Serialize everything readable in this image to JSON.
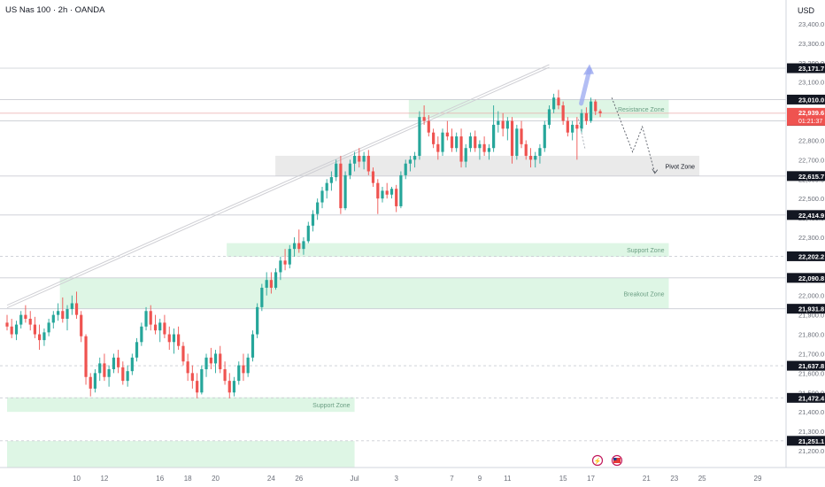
{
  "header": {
    "title": "US Nas 100 · 2h · OANDA",
    "currency": "USD"
  },
  "colors": {
    "up": "#26a69a",
    "down": "#ef5350",
    "zone_green": "#d8f5e1",
    "zone_gray": "#e6e6e6",
    "projection": "#9aa8f0"
  },
  "chart_data": {
    "type": "candlestick",
    "title": "US Nas 100 · 2h · OANDA",
    "ylim": [
      21100,
      23500
    ],
    "y_ticks": [
      21200,
      21300,
      21400,
      21500,
      21600,
      21700,
      21800,
      21900,
      22000,
      22100,
      22200,
      22300,
      22400,
      22500,
      22600,
      22700,
      22800,
      22900,
      23000,
      23100,
      23200,
      23300,
      23400
    ],
    "y_tick_labels": [
      "21,200.0",
      "21,300.0",
      "21,400.0",
      "21,500.0",
      "21,600.0",
      "21,700.0",
      "21,800.0",
      "21,900.0",
      "22,000.0",
      "22,100.0",
      "22,200.0",
      "22,300.0",
      "22,400.0",
      "22,500.0",
      "22,600.0",
      "22,700.0",
      "22,800.0",
      "22,900.0",
      "23,000.0",
      "23,100.0",
      "23,200.0",
      "23,300.0",
      "23,400.0"
    ],
    "x_ticks": [
      {
        "label": "10",
        "day": 10
      },
      {
        "label": "12",
        "day": 12
      },
      {
        "label": "16",
        "day": 16
      },
      {
        "label": "18",
        "day": 18
      },
      {
        "label": "20",
        "day": 20
      },
      {
        "label": "24",
        "day": 24
      },
      {
        "label": "26",
        "day": 26
      },
      {
        "label": "Jul",
        "day": 30
      },
      {
        "label": "3",
        "day": 33
      },
      {
        "label": "7",
        "day": 37
      },
      {
        "label": "9",
        "day": 39
      },
      {
        "label": "11",
        "day": 41
      },
      {
        "label": "15",
        "day": 45
      },
      {
        "label": "17",
        "day": 47
      },
      {
        "label": "21",
        "day": 51
      },
      {
        "label": "23",
        "day": 53
      },
      {
        "label": "25",
        "day": 55
      },
      {
        "label": "29",
        "day": 59
      }
    ],
    "price_levels": [
      {
        "label": "23,171.7",
        "value": 23171.7,
        "style": "solid"
      },
      {
        "label": "23,010.0",
        "value": 23010,
        "style": "solid"
      },
      {
        "label": "22,900.0",
        "value": 22900,
        "style": "solid"
      },
      {
        "label": "22,615.7",
        "value": 22615.7,
        "style": "solid"
      },
      {
        "label": "22,414.9",
        "value": 22414.9,
        "style": "solid"
      },
      {
        "label": "22,202.2",
        "value": 22202.2,
        "style": "dashed"
      },
      {
        "label": "22,090.8",
        "value": 22090.8,
        "style": "solid"
      },
      {
        "label": "21,931.8",
        "value": 21931.8,
        "style": "solid"
      },
      {
        "label": "21,637.8",
        "value": 21637.8,
        "style": "dashed"
      },
      {
        "label": "21,472.4",
        "value": 21472.4,
        "style": "dashed"
      },
      {
        "label": "21,251.1",
        "value": 21251.1,
        "style": "dashed"
      }
    ],
    "current_price": {
      "label": "22,939.6",
      "countdown": "01:21:37",
      "value": 22939.6
    },
    "zones": [
      {
        "name": "Resistance Zone",
        "x0": 33.9,
        "x1": 52.6,
        "y0": 22915,
        "y1": 23010,
        "color": "green"
      },
      {
        "name": "Pivot Zone",
        "x0": 24.3,
        "x1": 54.8,
        "y0": 22615,
        "y1": 22720,
        "color": "gray"
      },
      {
        "name": "Support Zone",
        "x0": 20.8,
        "x1": 52.6,
        "y0": 22200,
        "y1": 22270,
        "color": "green"
      },
      {
        "name": "Breakout Zone",
        "x0": 8.8,
        "x1": 52.6,
        "y0": 21932,
        "y1": 22090,
        "color": "green"
      },
      {
        "name": "Support Zone",
        "x0": 5.0,
        "x1": 30.0,
        "y0": 21400,
        "y1": 21475,
        "color": "green"
      },
      {
        "name": "",
        "x0": 5.0,
        "x1": 30.0,
        "y0": 21100,
        "y1": 21250,
        "color": "green"
      }
    ],
    "trendline": [
      {
        "x": 5.0,
        "y": 21950
      },
      {
        "x": 44.0,
        "y": 23190
      }
    ],
    "scenario_up": [
      {
        "x": 46.3,
        "y": 22990
      },
      {
        "x": 46.9,
        "y": 23165
      }
    ],
    "scenario_down_short": [
      {
        "x": 46.1,
        "y": 22910
      },
      {
        "x": 46.6,
        "y": 22750
      }
    ],
    "scenario_down_long": [
      {
        "x": 48.5,
        "y": 23020
      },
      {
        "x": 50.0,
        "y": 22740
      },
      {
        "x": 50.7,
        "y": 22870
      },
      {
        "x": 51.6,
        "y": 22630
      }
    ],
    "candles": [
      {
        "x": 5.0,
        "o": 21860,
        "h": 21900,
        "l": 21820,
        "c": 21840
      },
      {
        "x": 5.33,
        "o": 21840,
        "h": 21880,
        "l": 21780,
        "c": 21800
      },
      {
        "x": 5.67,
        "o": 21800,
        "h": 21870,
        "l": 21770,
        "c": 21850
      },
      {
        "x": 6.0,
        "o": 21850,
        "h": 21920,
        "l": 21830,
        "c": 21900
      },
      {
        "x": 6.33,
        "o": 21900,
        "h": 21950,
        "l": 21860,
        "c": 21880
      },
      {
        "x": 6.67,
        "o": 21880,
        "h": 21920,
        "l": 21820,
        "c": 21850
      },
      {
        "x": 7.0,
        "o": 21850,
        "h": 21890,
        "l": 21780,
        "c": 21800
      },
      {
        "x": 7.33,
        "o": 21800,
        "h": 21850,
        "l": 21720,
        "c": 21770
      },
      {
        "x": 7.67,
        "o": 21770,
        "h": 21830,
        "l": 21740,
        "c": 21810
      },
      {
        "x": 8.0,
        "o": 21810,
        "h": 21880,
        "l": 21790,
        "c": 21860
      },
      {
        "x": 8.33,
        "o": 21860,
        "h": 21920,
        "l": 21830,
        "c": 21900
      },
      {
        "x": 8.67,
        "o": 21900,
        "h": 21960,
        "l": 21870,
        "c": 21920
      },
      {
        "x": 9.0,
        "o": 21920,
        "h": 21990,
        "l": 21860,
        "c": 21880
      },
      {
        "x": 9.33,
        "o": 21880,
        "h": 21950,
        "l": 21820,
        "c": 21930
      },
      {
        "x": 9.67,
        "o": 21930,
        "h": 22000,
        "l": 21900,
        "c": 21960
      },
      {
        "x": 10.0,
        "o": 21960,
        "h": 22020,
        "l": 21880,
        "c": 21900
      },
      {
        "x": 10.33,
        "o": 21900,
        "h": 21920,
        "l": 21760,
        "c": 21790
      },
      {
        "x": 10.67,
        "o": 21790,
        "h": 21800,
        "l": 21540,
        "c": 21580
      },
      {
        "x": 11.0,
        "o": 21580,
        "h": 21600,
        "l": 21480,
        "c": 21520
      },
      {
        "x": 11.33,
        "o": 21520,
        "h": 21620,
        "l": 21500,
        "c": 21600
      },
      {
        "x": 11.67,
        "o": 21600,
        "h": 21680,
        "l": 21560,
        "c": 21650
      },
      {
        "x": 12.0,
        "o": 21650,
        "h": 21700,
        "l": 21560,
        "c": 21580
      },
      {
        "x": 12.33,
        "o": 21580,
        "h": 21640,
        "l": 21530,
        "c": 21620
      },
      {
        "x": 12.67,
        "o": 21620,
        "h": 21700,
        "l": 21600,
        "c": 21680
      },
      {
        "x": 13.0,
        "o": 21680,
        "h": 21720,
        "l": 21600,
        "c": 21630
      },
      {
        "x": 13.33,
        "o": 21630,
        "h": 21660,
        "l": 21540,
        "c": 21560
      },
      {
        "x": 13.67,
        "o": 21560,
        "h": 21640,
        "l": 21530,
        "c": 21610
      },
      {
        "x": 14.0,
        "o": 21610,
        "h": 21700,
        "l": 21590,
        "c": 21680
      },
      {
        "x": 14.33,
        "o": 21680,
        "h": 21780,
        "l": 21660,
        "c": 21760
      },
      {
        "x": 14.67,
        "o": 21760,
        "h": 21860,
        "l": 21740,
        "c": 21840
      },
      {
        "x": 15.0,
        "o": 21840,
        "h": 21940,
        "l": 21820,
        "c": 21920
      },
      {
        "x": 15.33,
        "o": 21920,
        "h": 21950,
        "l": 21820,
        "c": 21850
      },
      {
        "x": 15.67,
        "o": 21850,
        "h": 21900,
        "l": 21800,
        "c": 21820
      },
      {
        "x": 16.0,
        "o": 21820,
        "h": 21880,
        "l": 21760,
        "c": 21860
      },
      {
        "x": 16.33,
        "o": 21860,
        "h": 21900,
        "l": 21780,
        "c": 21800
      },
      {
        "x": 16.67,
        "o": 21800,
        "h": 21840,
        "l": 21720,
        "c": 21760
      },
      {
        "x": 17.0,
        "o": 21760,
        "h": 21830,
        "l": 21700,
        "c": 21800
      },
      {
        "x": 17.33,
        "o": 21800,
        "h": 21840,
        "l": 21720,
        "c": 21740
      },
      {
        "x": 17.67,
        "o": 21740,
        "h": 21760,
        "l": 21640,
        "c": 21660
      },
      {
        "x": 18.0,
        "o": 21660,
        "h": 21700,
        "l": 21560,
        "c": 21600
      },
      {
        "x": 18.33,
        "o": 21600,
        "h": 21640,
        "l": 21520,
        "c": 21560
      },
      {
        "x": 18.67,
        "o": 21560,
        "h": 21600,
        "l": 21470,
        "c": 21500
      },
      {
        "x": 19.0,
        "o": 21500,
        "h": 21640,
        "l": 21490,
        "c": 21620
      },
      {
        "x": 19.33,
        "o": 21620,
        "h": 21700,
        "l": 21580,
        "c": 21680
      },
      {
        "x": 19.67,
        "o": 21680,
        "h": 21730,
        "l": 21620,
        "c": 21650
      },
      {
        "x": 20.0,
        "o": 21650,
        "h": 21720,
        "l": 21600,
        "c": 21700
      },
      {
        "x": 20.33,
        "o": 21700,
        "h": 21740,
        "l": 21600,
        "c": 21620
      },
      {
        "x": 20.67,
        "o": 21620,
        "h": 21660,
        "l": 21540,
        "c": 21560
      },
      {
        "x": 21.0,
        "o": 21560,
        "h": 21600,
        "l": 21470,
        "c": 21500
      },
      {
        "x": 21.33,
        "o": 21500,
        "h": 21580,
        "l": 21480,
        "c": 21560
      },
      {
        "x": 21.67,
        "o": 21560,
        "h": 21660,
        "l": 21540,
        "c": 21640
      },
      {
        "x": 22.0,
        "o": 21640,
        "h": 21700,
        "l": 21560,
        "c": 21600
      },
      {
        "x": 22.33,
        "o": 21600,
        "h": 21700,
        "l": 21580,
        "c": 21680
      },
      {
        "x": 22.67,
        "o": 21680,
        "h": 21820,
        "l": 21660,
        "c": 21800
      },
      {
        "x": 23.0,
        "o": 21800,
        "h": 21960,
        "l": 21780,
        "c": 21940
      },
      {
        "x": 23.33,
        "o": 21940,
        "h": 22060,
        "l": 21920,
        "c": 22040
      },
      {
        "x": 23.67,
        "o": 22040,
        "h": 22120,
        "l": 22000,
        "c": 22080
      },
      {
        "x": 24.0,
        "o": 22080,
        "h": 22120,
        "l": 22010,
        "c": 22040
      },
      {
        "x": 24.33,
        "o": 22040,
        "h": 22140,
        "l": 22030,
        "c": 22120
      },
      {
        "x": 24.67,
        "o": 22120,
        "h": 22200,
        "l": 22080,
        "c": 22180
      },
      {
        "x": 25.0,
        "o": 22180,
        "h": 22240,
        "l": 22130,
        "c": 22160
      },
      {
        "x": 25.33,
        "o": 22160,
        "h": 22260,
        "l": 22140,
        "c": 22240
      },
      {
        "x": 25.67,
        "o": 22240,
        "h": 22300,
        "l": 22200,
        "c": 22270
      },
      {
        "x": 26.0,
        "o": 22270,
        "h": 22340,
        "l": 22220,
        "c": 22240
      },
      {
        "x": 26.33,
        "o": 22240,
        "h": 22300,
        "l": 22210,
        "c": 22280
      },
      {
        "x": 26.67,
        "o": 22280,
        "h": 22380,
        "l": 22270,
        "c": 22360
      },
      {
        "x": 27.0,
        "o": 22360,
        "h": 22440,
        "l": 22330,
        "c": 22420
      },
      {
        "x": 27.33,
        "o": 22420,
        "h": 22500,
        "l": 22390,
        "c": 22480
      },
      {
        "x": 27.67,
        "o": 22480,
        "h": 22560,
        "l": 22450,
        "c": 22540
      },
      {
        "x": 28.0,
        "o": 22540,
        "h": 22600,
        "l": 22500,
        "c": 22580
      },
      {
        "x": 28.33,
        "o": 22580,
        "h": 22640,
        "l": 22540,
        "c": 22610
      },
      {
        "x": 28.67,
        "o": 22610,
        "h": 22700,
        "l": 22590,
        "c": 22680
      },
      {
        "x": 29.0,
        "o": 22680,
        "h": 22720,
        "l": 22420,
        "c": 22450
      },
      {
        "x": 29.33,
        "o": 22450,
        "h": 22640,
        "l": 22440,
        "c": 22620
      },
      {
        "x": 29.67,
        "o": 22620,
        "h": 22700,
        "l": 22600,
        "c": 22680
      },
      {
        "x": 30.0,
        "o": 22680,
        "h": 22740,
        "l": 22640,
        "c": 22720
      },
      {
        "x": 30.33,
        "o": 22720,
        "h": 22760,
        "l": 22660,
        "c": 22690
      },
      {
        "x": 30.67,
        "o": 22690,
        "h": 22740,
        "l": 22650,
        "c": 22720
      },
      {
        "x": 31.0,
        "o": 22720,
        "h": 22750,
        "l": 22620,
        "c": 22640
      },
      {
        "x": 31.33,
        "o": 22640,
        "h": 22660,
        "l": 22560,
        "c": 22580
      },
      {
        "x": 31.67,
        "o": 22580,
        "h": 22600,
        "l": 22420,
        "c": 22500
      },
      {
        "x": 32.0,
        "o": 22500,
        "h": 22560,
        "l": 22480,
        "c": 22540
      },
      {
        "x": 32.33,
        "o": 22540,
        "h": 22580,
        "l": 22500,
        "c": 22520
      },
      {
        "x": 32.67,
        "o": 22520,
        "h": 22560,
        "l": 22500,
        "c": 22550
      },
      {
        "x": 33.0,
        "o": 22550,
        "h": 22570,
        "l": 22430,
        "c": 22460
      },
      {
        "x": 33.33,
        "o": 22460,
        "h": 22640,
        "l": 22450,
        "c": 22620
      },
      {
        "x": 33.67,
        "o": 22620,
        "h": 22700,
        "l": 22600,
        "c": 22680
      },
      {
        "x": 34.0,
        "o": 22680,
        "h": 22720,
        "l": 22640,
        "c": 22700
      },
      {
        "x": 34.33,
        "o": 22700,
        "h": 22740,
        "l": 22660,
        "c": 22720
      },
      {
        "x": 34.67,
        "o": 22720,
        "h": 22950,
        "l": 22700,
        "c": 22920
      },
      {
        "x": 35.0,
        "o": 22920,
        "h": 22980,
        "l": 22880,
        "c": 22900
      },
      {
        "x": 35.33,
        "o": 22900,
        "h": 22930,
        "l": 22820,
        "c": 22840
      },
      {
        "x": 35.67,
        "o": 22840,
        "h": 22860,
        "l": 22760,
        "c": 22780
      },
      {
        "x": 36.0,
        "o": 22780,
        "h": 22820,
        "l": 22700,
        "c": 22740
      },
      {
        "x": 36.33,
        "o": 22740,
        "h": 22860,
        "l": 22720,
        "c": 22840
      },
      {
        "x": 36.67,
        "o": 22840,
        "h": 22900,
        "l": 22800,
        "c": 22820
      },
      {
        "x": 37.0,
        "o": 22820,
        "h": 22860,
        "l": 22740,
        "c": 22760
      },
      {
        "x": 37.33,
        "o": 22760,
        "h": 22840,
        "l": 22740,
        "c": 22820
      },
      {
        "x": 37.67,
        "o": 22820,
        "h": 22860,
        "l": 22660,
        "c": 22690
      },
      {
        "x": 38.0,
        "o": 22690,
        "h": 22780,
        "l": 22660,
        "c": 22760
      },
      {
        "x": 38.33,
        "o": 22760,
        "h": 22840,
        "l": 22740,
        "c": 22820
      },
      {
        "x": 38.67,
        "o": 22820,
        "h": 22850,
        "l": 22740,
        "c": 22760
      },
      {
        "x": 39.0,
        "o": 22760,
        "h": 22800,
        "l": 22700,
        "c": 22780
      },
      {
        "x": 39.33,
        "o": 22780,
        "h": 22820,
        "l": 22720,
        "c": 22740
      },
      {
        "x": 39.67,
        "o": 22740,
        "h": 22780,
        "l": 22700,
        "c": 22760
      },
      {
        "x": 40.0,
        "o": 22760,
        "h": 22980,
        "l": 22740,
        "c": 22880
      },
      {
        "x": 40.33,
        "o": 22880,
        "h": 22950,
        "l": 22840,
        "c": 22900
      },
      {
        "x": 40.67,
        "o": 22900,
        "h": 22940,
        "l": 22820,
        "c": 22860
      },
      {
        "x": 41.0,
        "o": 22860,
        "h": 22920,
        "l": 22800,
        "c": 22900
      },
      {
        "x": 41.33,
        "o": 22900,
        "h": 22920,
        "l": 22680,
        "c": 22720
      },
      {
        "x": 41.67,
        "o": 22720,
        "h": 22880,
        "l": 22700,
        "c": 22860
      },
      {
        "x": 42.0,
        "o": 22860,
        "h": 22900,
        "l": 22760,
        "c": 22780
      },
      {
        "x": 42.33,
        "o": 22780,
        "h": 22800,
        "l": 22700,
        "c": 22720
      },
      {
        "x": 42.67,
        "o": 22720,
        "h": 22760,
        "l": 22660,
        "c": 22700
      },
      {
        "x": 43.0,
        "o": 22700,
        "h": 22740,
        "l": 22660,
        "c": 22720
      },
      {
        "x": 43.33,
        "o": 22720,
        "h": 22780,
        "l": 22680,
        "c": 22760
      },
      {
        "x": 43.67,
        "o": 22760,
        "h": 22900,
        "l": 22740,
        "c": 22880
      },
      {
        "x": 44.0,
        "o": 22880,
        "h": 22980,
        "l": 22860,
        "c": 22960
      },
      {
        "x": 44.33,
        "o": 22960,
        "h": 23040,
        "l": 22940,
        "c": 23020
      },
      {
        "x": 44.67,
        "o": 23020,
        "h": 23060,
        "l": 22960,
        "c": 22980
      },
      {
        "x": 45.0,
        "o": 22980,
        "h": 23000,
        "l": 22880,
        "c": 22900
      },
      {
        "x": 45.33,
        "o": 22900,
        "h": 22920,
        "l": 22820,
        "c": 22840
      },
      {
        "x": 45.67,
        "o": 22840,
        "h": 22900,
        "l": 22800,
        "c": 22880
      },
      {
        "x": 46.0,
        "o": 22880,
        "h": 22920,
        "l": 22700,
        "c": 22860
      },
      {
        "x": 46.33,
        "o": 22860,
        "h": 22960,
        "l": 22840,
        "c": 22940
      },
      {
        "x": 46.67,
        "o": 22940,
        "h": 22970,
        "l": 22880,
        "c": 22900
      },
      {
        "x": 47.0,
        "o": 22900,
        "h": 23020,
        "l": 22890,
        "c": 23000
      },
      {
        "x": 47.33,
        "o": 23000,
        "h": 23010,
        "l": 22930,
        "c": 22950
      },
      {
        "x": 47.67,
        "o": 22950,
        "h": 22960,
        "l": 22920,
        "c": 22939.6
      }
    ]
  }
}
